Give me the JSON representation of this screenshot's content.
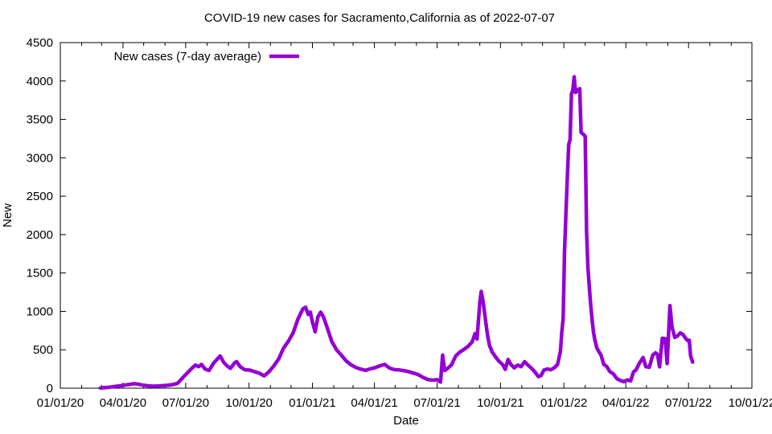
{
  "chart_data": {
    "type": "line",
    "title": "COVID-19 new cases for Sacramento,California as of 2022-07-07",
    "xlabel": "Date",
    "ylabel": "New",
    "legend_label": "New cases (7-day average)",
    "legend_position": "top-left-inside",
    "grid": false,
    "background_color": "#ffffff",
    "axis_color": "#000000",
    "line_color": "#9400D3",
    "line_width": 4.5,
    "ylim": [
      0,
      4500
    ],
    "y_tick_step": 500,
    "y_ticks": [
      0,
      500,
      1000,
      1500,
      2000,
      2500,
      3000,
      3500,
      4000,
      4500
    ],
    "xlim": [
      "2020-01-01",
      "2022-10-01"
    ],
    "x_minor_tick_unit": "month",
    "x_ticks": [
      {
        "date": "2020-01-01",
        "label": "01/01/20"
      },
      {
        "date": "2020-04-01",
        "label": "04/01/20"
      },
      {
        "date": "2020-07-01",
        "label": "07/01/20"
      },
      {
        "date": "2020-10-01",
        "label": "10/01/20"
      },
      {
        "date": "2021-01-01",
        "label": "01/01/21"
      },
      {
        "date": "2021-04-01",
        "label": "04/01/21"
      },
      {
        "date": "2021-07-01",
        "label": "07/01/21"
      },
      {
        "date": "2021-10-01",
        "label": "10/01/21"
      },
      {
        "date": "2022-01-01",
        "label": "01/01/22"
      },
      {
        "date": "2022-04-01",
        "label": "04/01/22"
      },
      {
        "date": "2022-07-01",
        "label": "07/01/22"
      },
      {
        "date": "2022-10-01",
        "label": "10/01/22"
      }
    ],
    "series": [
      {
        "name": "New cases (7-day average)",
        "points": [
          [
            "2020-02-28",
            2
          ],
          [
            "2020-03-06",
            8
          ],
          [
            "2020-03-13",
            14
          ],
          [
            "2020-03-20",
            22
          ],
          [
            "2020-03-27",
            30
          ],
          [
            "2020-04-03",
            40
          ],
          [
            "2020-04-10",
            48
          ],
          [
            "2020-04-17",
            60
          ],
          [
            "2020-04-24",
            50
          ],
          [
            "2020-05-01",
            38
          ],
          [
            "2020-05-08",
            30
          ],
          [
            "2020-05-15",
            26
          ],
          [
            "2020-05-22",
            28
          ],
          [
            "2020-05-29",
            32
          ],
          [
            "2020-06-05",
            38
          ],
          [
            "2020-06-12",
            46
          ],
          [
            "2020-06-19",
            62
          ],
          [
            "2020-06-26",
            130
          ],
          [
            "2020-07-03",
            195
          ],
          [
            "2020-07-10",
            260
          ],
          [
            "2020-07-15",
            300
          ],
          [
            "2020-07-20",
            280
          ],
          [
            "2020-07-24",
            310
          ],
          [
            "2020-07-29",
            250
          ],
          [
            "2020-08-04",
            230
          ],
          [
            "2020-08-10",
            320
          ],
          [
            "2020-08-15",
            370
          ],
          [
            "2020-08-20",
            420
          ],
          [
            "2020-08-25",
            340
          ],
          [
            "2020-08-30",
            290
          ],
          [
            "2020-09-04",
            260
          ],
          [
            "2020-09-10",
            330
          ],
          [
            "2020-09-13",
            345
          ],
          [
            "2020-09-18",
            280
          ],
          [
            "2020-09-25",
            240
          ],
          [
            "2020-10-02",
            235
          ],
          [
            "2020-10-09",
            215
          ],
          [
            "2020-10-16",
            195
          ],
          [
            "2020-10-23",
            160
          ],
          [
            "2020-10-30",
            215
          ],
          [
            "2020-11-06",
            290
          ],
          [
            "2020-11-13",
            380
          ],
          [
            "2020-11-20",
            520
          ],
          [
            "2020-11-27",
            610
          ],
          [
            "2020-12-04",
            720
          ],
          [
            "2020-12-11",
            900
          ],
          [
            "2020-12-18",
            1030
          ],
          [
            "2020-12-22",
            1055
          ],
          [
            "2020-12-26",
            960
          ],
          [
            "2020-12-29",
            990
          ],
          [
            "2021-01-01",
            860
          ],
          [
            "2021-01-05",
            735
          ],
          [
            "2021-01-09",
            930
          ],
          [
            "2021-01-13",
            990
          ],
          [
            "2021-01-17",
            930
          ],
          [
            "2021-01-22",
            800
          ],
          [
            "2021-01-29",
            610
          ],
          [
            "2021-02-05",
            500
          ],
          [
            "2021-02-12",
            430
          ],
          [
            "2021-02-19",
            355
          ],
          [
            "2021-02-26",
            305
          ],
          [
            "2021-03-05",
            270
          ],
          [
            "2021-03-12",
            248
          ],
          [
            "2021-03-19",
            232
          ],
          [
            "2021-03-26",
            252
          ],
          [
            "2021-04-02",
            268
          ],
          [
            "2021-04-09",
            292
          ],
          [
            "2021-04-16",
            310
          ],
          [
            "2021-04-23",
            262
          ],
          [
            "2021-04-30",
            242
          ],
          [
            "2021-05-07",
            238
          ],
          [
            "2021-05-14",
            228
          ],
          [
            "2021-05-21",
            215
          ],
          [
            "2021-05-28",
            196
          ],
          [
            "2021-06-04",
            175
          ],
          [
            "2021-06-11",
            138
          ],
          [
            "2021-06-18",
            112
          ],
          [
            "2021-06-25",
            105
          ],
          [
            "2021-07-01",
            112
          ],
          [
            "2021-07-06",
            80
          ],
          [
            "2021-07-09",
            430
          ],
          [
            "2021-07-12",
            230
          ],
          [
            "2021-07-16",
            255
          ],
          [
            "2021-07-22",
            305
          ],
          [
            "2021-07-28",
            420
          ],
          [
            "2021-08-03",
            470
          ],
          [
            "2021-08-09",
            505
          ],
          [
            "2021-08-15",
            545
          ],
          [
            "2021-08-21",
            605
          ],
          [
            "2021-08-25",
            710
          ],
          [
            "2021-08-28",
            640
          ],
          [
            "2021-09-01",
            1120
          ],
          [
            "2021-09-03",
            1260
          ],
          [
            "2021-09-06",
            1120
          ],
          [
            "2021-09-09",
            905
          ],
          [
            "2021-09-12",
            700
          ],
          [
            "2021-09-15",
            560
          ],
          [
            "2021-09-19",
            470
          ],
          [
            "2021-09-24",
            405
          ],
          [
            "2021-09-29",
            350
          ],
          [
            "2021-10-04",
            310
          ],
          [
            "2021-10-08",
            245
          ],
          [
            "2021-10-12",
            375
          ],
          [
            "2021-10-16",
            310
          ],
          [
            "2021-10-21",
            265
          ],
          [
            "2021-10-26",
            300
          ],
          [
            "2021-10-31",
            280
          ],
          [
            "2021-11-05",
            345
          ],
          [
            "2021-11-10",
            300
          ],
          [
            "2021-11-15",
            260
          ],
          [
            "2021-11-20",
            210
          ],
          [
            "2021-11-25",
            150
          ],
          [
            "2021-11-29",
            165
          ],
          [
            "2021-12-03",
            235
          ],
          [
            "2021-12-08",
            250
          ],
          [
            "2021-12-13",
            240
          ],
          [
            "2021-12-18",
            265
          ],
          [
            "2021-12-23",
            310
          ],
          [
            "2021-12-27",
            480
          ],
          [
            "2021-12-29",
            730
          ],
          [
            "2021-12-31",
            905
          ],
          [
            "2022-01-02",
            1780
          ],
          [
            "2022-01-04",
            2260
          ],
          [
            "2022-01-06",
            2720
          ],
          [
            "2022-01-08",
            3170
          ],
          [
            "2022-01-10",
            3240
          ],
          [
            "2022-01-12",
            3830
          ],
          [
            "2022-01-14",
            3880
          ],
          [
            "2022-01-16",
            4055
          ],
          [
            "2022-01-18",
            3850
          ],
          [
            "2022-01-21",
            3880
          ],
          [
            "2022-01-24",
            3900
          ],
          [
            "2022-01-26",
            3330
          ],
          [
            "2022-01-30",
            3300
          ],
          [
            "2022-02-01",
            3280
          ],
          [
            "2022-02-03",
            2050
          ],
          [
            "2022-02-05",
            1570
          ],
          [
            "2022-02-07",
            1320
          ],
          [
            "2022-02-09",
            1080
          ],
          [
            "2022-02-11",
            890
          ],
          [
            "2022-02-13",
            730
          ],
          [
            "2022-02-15",
            630
          ],
          [
            "2022-02-18",
            520
          ],
          [
            "2022-02-21",
            475
          ],
          [
            "2022-02-24",
            430
          ],
          [
            "2022-02-28",
            310
          ],
          [
            "2022-03-04",
            285
          ],
          [
            "2022-03-09",
            215
          ],
          [
            "2022-03-14",
            185
          ],
          [
            "2022-03-19",
            125
          ],
          [
            "2022-03-24",
            100
          ],
          [
            "2022-03-29",
            85
          ],
          [
            "2022-04-03",
            108
          ],
          [
            "2022-04-08",
            95
          ],
          [
            "2022-04-12",
            210
          ],
          [
            "2022-04-16",
            240
          ],
          [
            "2022-04-20",
            315
          ],
          [
            "2022-04-26",
            400
          ],
          [
            "2022-04-30",
            280
          ],
          [
            "2022-05-05",
            272
          ],
          [
            "2022-05-10",
            430
          ],
          [
            "2022-05-14",
            460
          ],
          [
            "2022-05-17",
            440
          ],
          [
            "2022-05-20",
            278
          ],
          [
            "2022-05-24",
            650
          ],
          [
            "2022-05-28",
            645
          ],
          [
            "2022-05-31",
            320
          ],
          [
            "2022-06-04",
            1075
          ],
          [
            "2022-06-07",
            800
          ],
          [
            "2022-06-11",
            660
          ],
          [
            "2022-06-15",
            680
          ],
          [
            "2022-06-19",
            720
          ],
          [
            "2022-06-23",
            700
          ],
          [
            "2022-06-27",
            645
          ],
          [
            "2022-06-30",
            620
          ],
          [
            "2022-07-02",
            625
          ],
          [
            "2022-07-04",
            420
          ],
          [
            "2022-07-07",
            340
          ]
        ]
      }
    ]
  }
}
